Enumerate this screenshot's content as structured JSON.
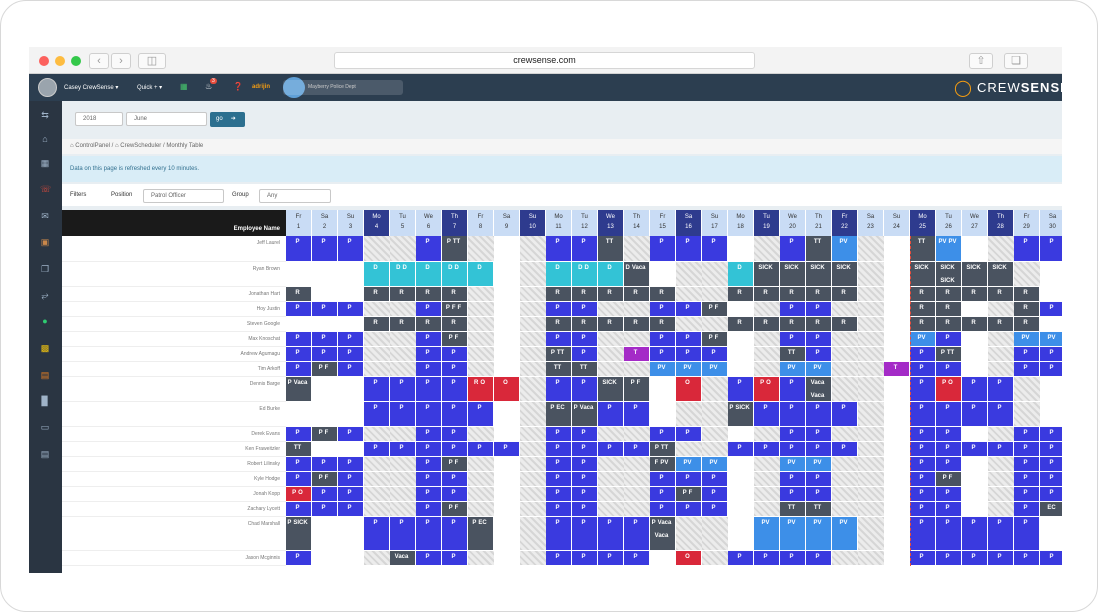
{
  "browser": {
    "url": "crewsense.com"
  },
  "topnav": {
    "user": "Casey CrewSense ▾",
    "quick": "Quick + ▾",
    "notif_count": "3",
    "brand_short": "adrijin",
    "dept": "Mayberry Police Dept",
    "logo_a": "CREW",
    "logo_b": "SENSE"
  },
  "toolbar": {
    "year": "2018",
    "month": "June",
    "go": "go"
  },
  "breadcrumb": {
    "items": [
      "ControlPanel",
      "CrewScheduler",
      "Monthly Table"
    ]
  },
  "notice": "Data on this page is refreshed every 10 minutes.",
  "filters": {
    "title": "Filters",
    "position_label": "Position",
    "position_value": "Patrol Officer",
    "group_label": "Group",
    "group_value": "Any"
  },
  "table": {
    "header": "Employee Name",
    "days": [
      [
        "Fr",
        "1"
      ],
      [
        "Sa",
        "2"
      ],
      [
        "Su",
        "3"
      ],
      [
        "Mo",
        "4"
      ],
      [
        "Tu",
        "5"
      ],
      [
        "We",
        "6"
      ],
      [
        "Th",
        "7"
      ],
      [
        "Fr",
        "8"
      ],
      [
        "Sa",
        "9"
      ],
      [
        "Su",
        "10"
      ],
      [
        "Mo",
        "11"
      ],
      [
        "Tu",
        "12"
      ],
      [
        "We",
        "13"
      ],
      [
        "Th",
        "14"
      ],
      [
        "Fr",
        "15"
      ],
      [
        "Sa",
        "16"
      ],
      [
        "Su",
        "17"
      ],
      [
        "Mo",
        "18"
      ],
      [
        "Tu",
        "19"
      ],
      [
        "We",
        "20"
      ],
      [
        "Th",
        "21"
      ],
      [
        "Fr",
        "22"
      ],
      [
        "Sa",
        "23"
      ],
      [
        "Su",
        "24"
      ],
      [
        "Mo",
        "25"
      ],
      [
        "Tu",
        "26"
      ],
      [
        "We",
        "27"
      ],
      [
        "Th",
        "28"
      ],
      [
        "Fr",
        "29"
      ],
      [
        "Sa",
        "30"
      ]
    ],
    "dark_days": [
      3,
      6,
      9,
      12,
      15,
      18,
      21,
      24,
      27
    ],
    "employees": [
      "Jeff Laurel",
      "Ryan Brown",
      "Jonathan Hart",
      "Hoy Justin",
      "Steven Google",
      "Max Knoschat",
      "Andrew Agumagu",
      "Tim Arkoff",
      "Dennis Barge",
      "Ed Burke",
      "Derek Evans",
      "Ken Fraweitzler",
      "Robert Lilinsky",
      "Kyle Hodge",
      "Jonah Kopp",
      "Zachary Lycett",
      "Chad Marshall",
      "Jason Mcginnis"
    ],
    "rows": [
      [
        "P",
        "P",
        "P",
        "",
        "",
        "P",
        "P TT",
        "",
        "",
        "",
        "P",
        "P",
        "TT",
        "",
        "P",
        "P",
        "P",
        "",
        "",
        "P",
        "TT",
        "PV",
        "",
        "",
        "TT",
        "PV PV",
        "",
        "",
        "P",
        "P"
      ],
      [
        "",
        "",
        "",
        "D",
        "D D",
        "D",
        "D D",
        "D",
        "",
        "",
        "D",
        "D D",
        "D",
        "D Vaca",
        "",
        "",
        "",
        "D",
        "SICK",
        "SICK",
        "SICK",
        "SICK",
        "",
        "",
        "SICK",
        "SICK SICK",
        "SICK",
        "SICK",
        "",
        ""
      ],
      [
        "R",
        "",
        "",
        "R",
        "R",
        "R",
        "R",
        "",
        "",
        "",
        "R",
        "R",
        "R",
        "R",
        "R",
        "",
        "",
        "R",
        "R",
        "R",
        "R",
        "R",
        "",
        "",
        "R",
        "R",
        "R",
        "R",
        "R",
        ""
      ],
      [
        "P",
        "P",
        "P",
        "",
        "",
        "P",
        "P F F",
        "",
        "",
        "",
        "P",
        "P",
        "",
        "",
        "P",
        "P",
        "P F",
        "",
        "",
        "P",
        "P",
        "",
        "",
        "",
        "R",
        "R",
        "",
        "",
        "R",
        "P"
      ],
      [
        "",
        "",
        "",
        "R",
        "R",
        "R",
        "R",
        "",
        "",
        "",
        "R",
        "R",
        "R",
        "R",
        "R",
        "",
        "",
        "R",
        "R",
        "R",
        "R",
        "R",
        "",
        "",
        "R",
        "R",
        "R",
        "R",
        "R",
        ""
      ],
      [
        "P",
        "P",
        "P",
        "",
        "",
        "P",
        "P F",
        "",
        "",
        "",
        "P",
        "P",
        "",
        "",
        "P",
        "P",
        "P F",
        "",
        "",
        "P",
        "P",
        "",
        "",
        "",
        "PV",
        "P",
        "",
        "",
        "PV",
        "PV"
      ],
      [
        "P",
        "P",
        "P",
        "",
        "",
        "P",
        "P",
        "",
        "",
        "",
        "P TT",
        "P",
        "",
        "T",
        "P",
        "P",
        "P",
        "",
        "",
        "TT",
        "P",
        "",
        "",
        "",
        "P",
        "P TT",
        "",
        "",
        "P",
        "P"
      ],
      [
        "P",
        "P F",
        "P",
        "",
        "",
        "P",
        "P",
        "",
        "",
        "",
        "TT",
        "TT",
        "",
        "",
        "PV",
        "PV",
        "PV",
        "",
        "",
        "PV",
        "PV",
        "",
        "",
        "T",
        "P",
        "P",
        "",
        "",
        "P",
        "P"
      ],
      [
        "P Vaca",
        "",
        "",
        "P",
        "P",
        "P",
        "P",
        "R O",
        "O",
        "",
        "P",
        "P",
        "SICK",
        "P F",
        "",
        "O",
        "",
        "P",
        "P O",
        "P",
        "Vaca Vaca",
        "",
        "",
        "",
        "P",
        "P O",
        "P",
        "P",
        "",
        ""
      ],
      [
        "",
        "",
        "",
        "P",
        "P",
        "P",
        "P",
        "P",
        "",
        "",
        "P EC",
        "P Vaca",
        "P",
        "P",
        "",
        "",
        "",
        "P SICK",
        "P",
        "P",
        "P",
        "P",
        "",
        "",
        "P",
        "P",
        "P",
        "P",
        "",
        ""
      ],
      [
        "P",
        "P F",
        "P",
        "",
        "",
        "P",
        "P",
        "",
        "",
        "",
        "P",
        "P",
        "",
        "",
        "P",
        "P",
        "",
        "",
        "",
        "P",
        "P",
        "",
        "",
        "",
        "P",
        "P",
        "",
        "",
        "P",
        "P"
      ],
      [
        "TT",
        "",
        "",
        "P",
        "P",
        "P",
        "P",
        "P",
        "P",
        "",
        "P",
        "P",
        "P",
        "P",
        "P TT",
        "",
        "",
        "P",
        "P",
        "P",
        "P",
        "P",
        "",
        "",
        "P",
        "P",
        "P",
        "P",
        "P",
        "P"
      ],
      [
        "P",
        "P",
        "P",
        "",
        "",
        "P",
        "P F",
        "",
        "",
        "",
        "P",
        "P",
        "",
        "",
        "F PV",
        "PV",
        "PV",
        "",
        "",
        "PV",
        "PV",
        "",
        "",
        "",
        "P",
        "P",
        "",
        "",
        "P",
        "P"
      ],
      [
        "P",
        "P F",
        "P",
        "",
        "",
        "P",
        "P",
        "",
        "",
        "",
        "P",
        "P",
        "",
        "",
        "P",
        "P",
        "P",
        "",
        "",
        "P",
        "P",
        "",
        "",
        "",
        "P",
        "P F",
        "",
        "",
        "P",
        "P"
      ],
      [
        "P O",
        "P",
        "P",
        "",
        "",
        "P",
        "P",
        "",
        "",
        "",
        "P",
        "P",
        "",
        "",
        "P",
        "P F",
        "P",
        "",
        "",
        "P",
        "P",
        "",
        "",
        "",
        "P",
        "P",
        "",
        "",
        "P",
        "P"
      ],
      [
        "P",
        "P",
        "P",
        "",
        "",
        "P",
        "P F",
        "",
        "",
        "",
        "P",
        "P",
        "",
        "",
        "P",
        "P",
        "P",
        "",
        "",
        "TT",
        "TT",
        "",
        "",
        "",
        "P",
        "P",
        "",
        "",
        "P",
        "EC"
      ],
      [
        "P SICK",
        "",
        "",
        "P",
        "P",
        "P",
        "P",
        "P EC",
        "",
        "",
        "P",
        "P",
        "P",
        "P",
        "P Vaca Vaca",
        "",
        "",
        "",
        "PV",
        "PV",
        "PV",
        "PV",
        "",
        "",
        "P",
        "P",
        "P",
        "P",
        "P",
        ""
      ],
      [
        "P",
        "",
        "",
        "",
        "Vaca",
        "P",
        "P",
        "",
        "",
        "",
        "P",
        "P",
        "P",
        "P",
        "",
        "O",
        "",
        "P",
        "P",
        "P",
        "P",
        "",
        "",
        "",
        "P",
        "P",
        "P",
        "P",
        "P",
        "P"
      ]
    ],
    "colors": {
      "blue": "#3a3adf",
      "gray": "#4a5360",
      "teal": "#33c3d6",
      "red": "#d9283a",
      "light_blue": "#3d8fe8",
      "purple": "#a42bc7"
    }
  }
}
